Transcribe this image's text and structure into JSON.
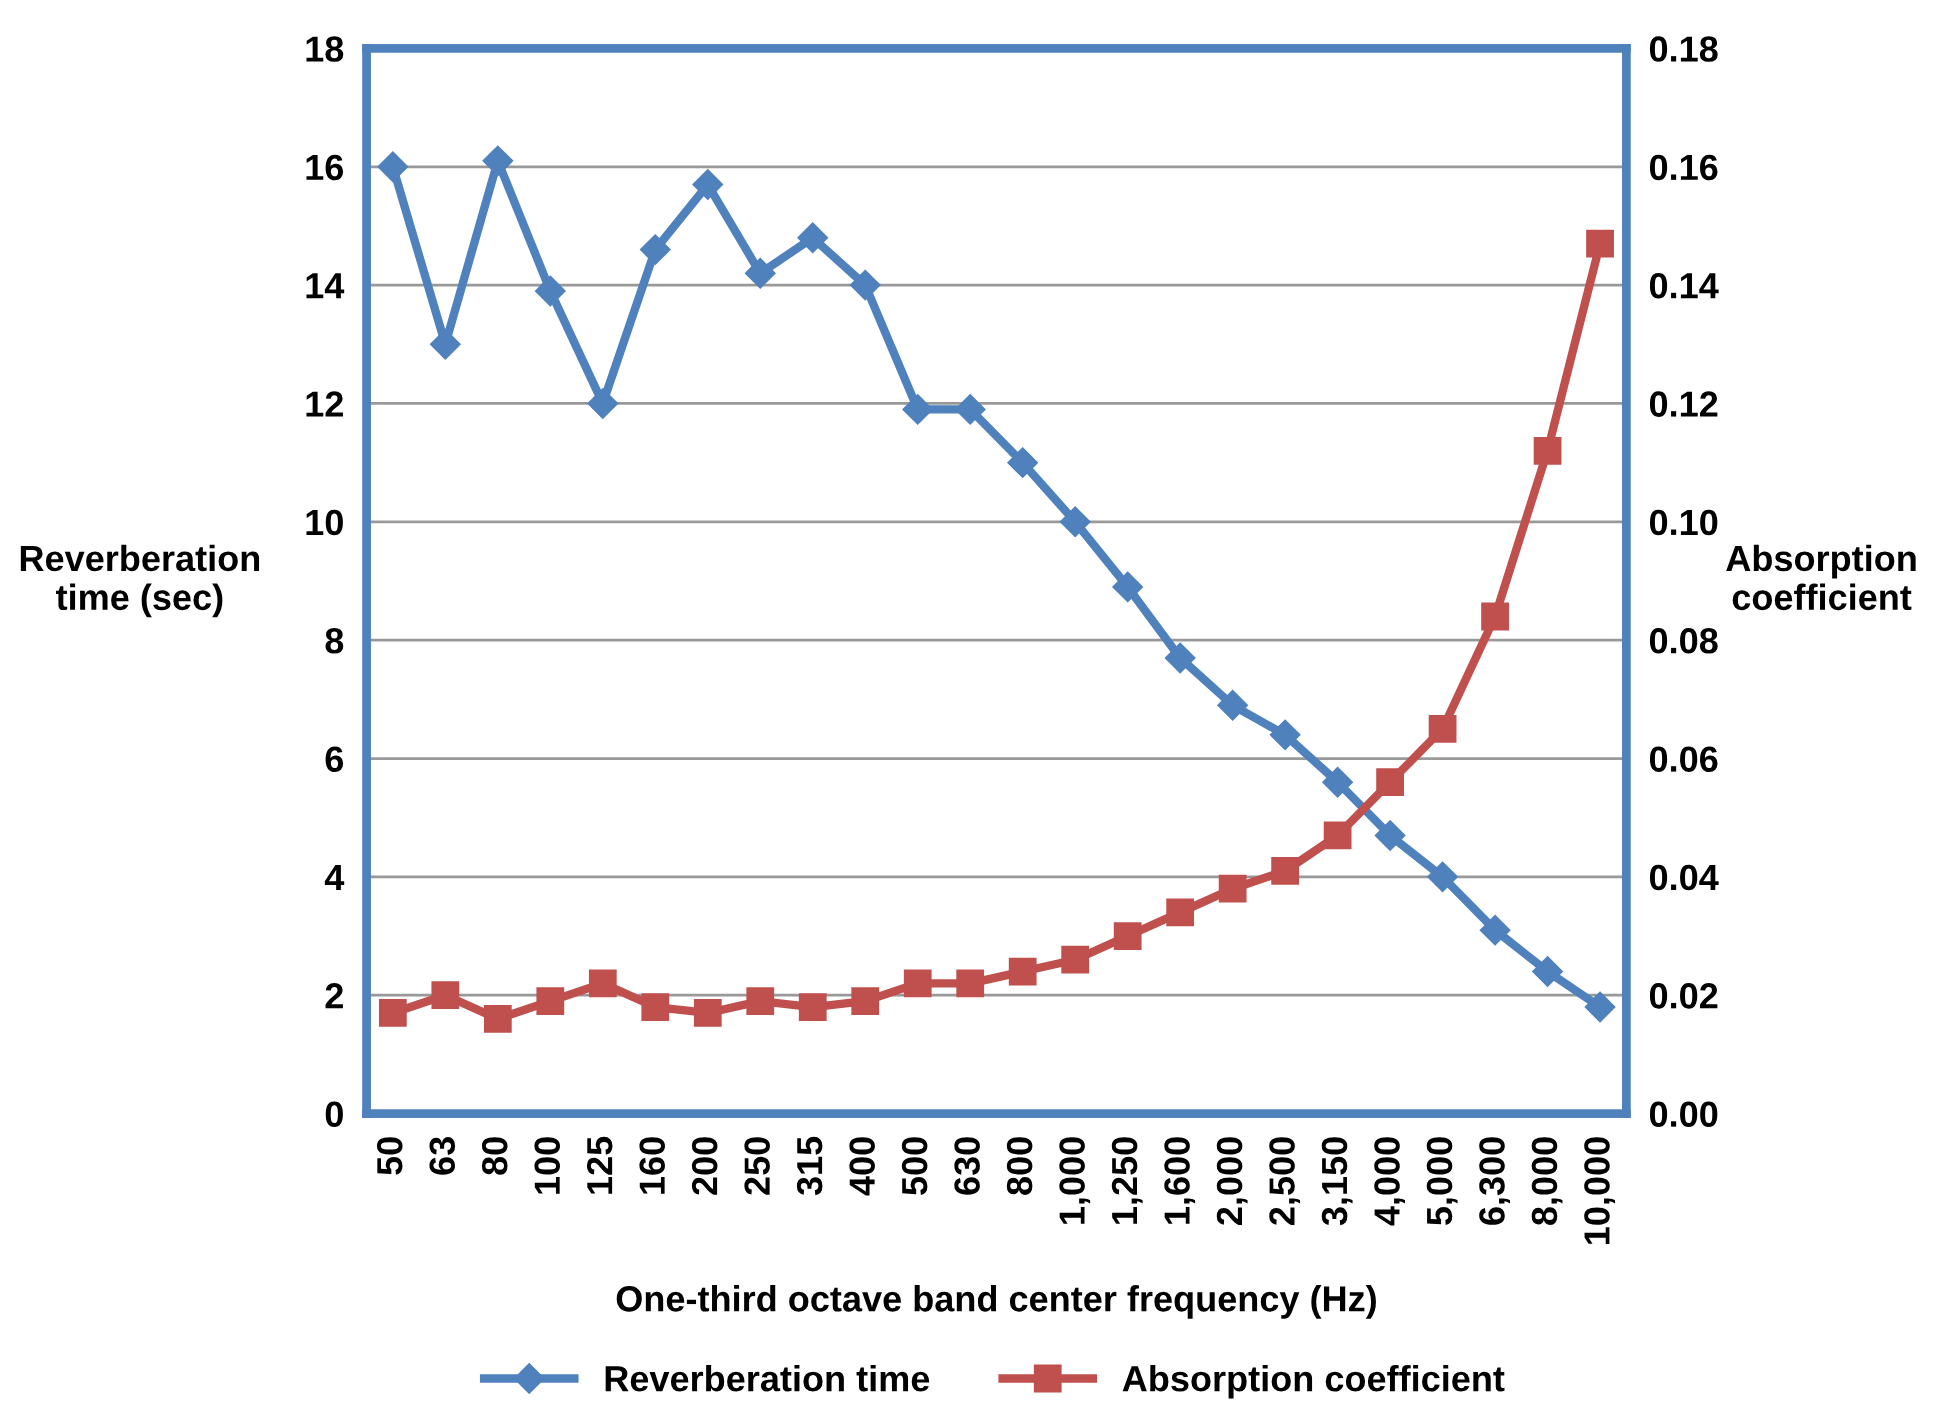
{
  "chart_data": {
    "type": "line",
    "categories": [
      "50",
      "63",
      "80",
      "100",
      "125",
      "160",
      "200",
      "250",
      "315",
      "400",
      "500",
      "630",
      "800",
      "1,000",
      "1,250",
      "1,600",
      "2,000",
      "2,500",
      "3,150",
      "4,000",
      "5,000",
      "6,300",
      "8,000",
      "10,000"
    ],
    "series": [
      {
        "name": "Reverberation time",
        "color": "#4f81bd",
        "marker": "diamond",
        "values": [
          16.0,
          13.0,
          16.1,
          13.9,
          12.0,
          14.6,
          15.7,
          14.2,
          14.8,
          14.0,
          11.9,
          11.9,
          11.0,
          10.0,
          8.9,
          7.7,
          6.9,
          6.4,
          5.6,
          4.7,
          4.0,
          3.1,
          2.4,
          1.8
        ]
      },
      {
        "name": "Absorption coefficient",
        "color": "#c0504d",
        "marker": "square",
        "axis": "y2",
        "values": [
          0.017,
          0.02,
          0.016,
          0.019,
          0.022,
          0.018,
          0.017,
          0.019,
          0.018,
          0.019,
          0.022,
          0.022,
          0.024,
          0.026,
          0.03,
          0.034,
          0.038,
          0.041,
          0.047,
          0.056,
          0.065,
          0.084,
          0.112,
          0.147
        ]
      }
    ],
    "xlabel": "One-third octave band center frequency (Hz)",
    "ylabel": "Reverberation time (sec)",
    "y2label": "Absorption coefficient",
    "ylim": [
      0,
      18
    ],
    "yticks": [
      0,
      2,
      4,
      6,
      8,
      10,
      12,
      14,
      16,
      18
    ],
    "y2lim": [
      0,
      0.18
    ],
    "y2ticks": [
      {
        "value": 0,
        "label": "0.00"
      },
      {
        "value": 0.02,
        "label": "0.02"
      },
      {
        "value": 0.04,
        "label": "0.04"
      },
      {
        "value": 0.06,
        "label": "0.06"
      },
      {
        "value": 0.08,
        "label": "0.08"
      },
      {
        "value": 0.1,
        "label": "0.10"
      },
      {
        "value": 0.12,
        "label": "0.12"
      },
      {
        "value": 0.14,
        "label": "0.14"
      },
      {
        "value": 0.16,
        "label": "0.16"
      },
      {
        "value": 0.18,
        "label": "0.18"
      }
    ],
    "grid": "y",
    "legend": "bottom",
    "line_style": "solid"
  }
}
